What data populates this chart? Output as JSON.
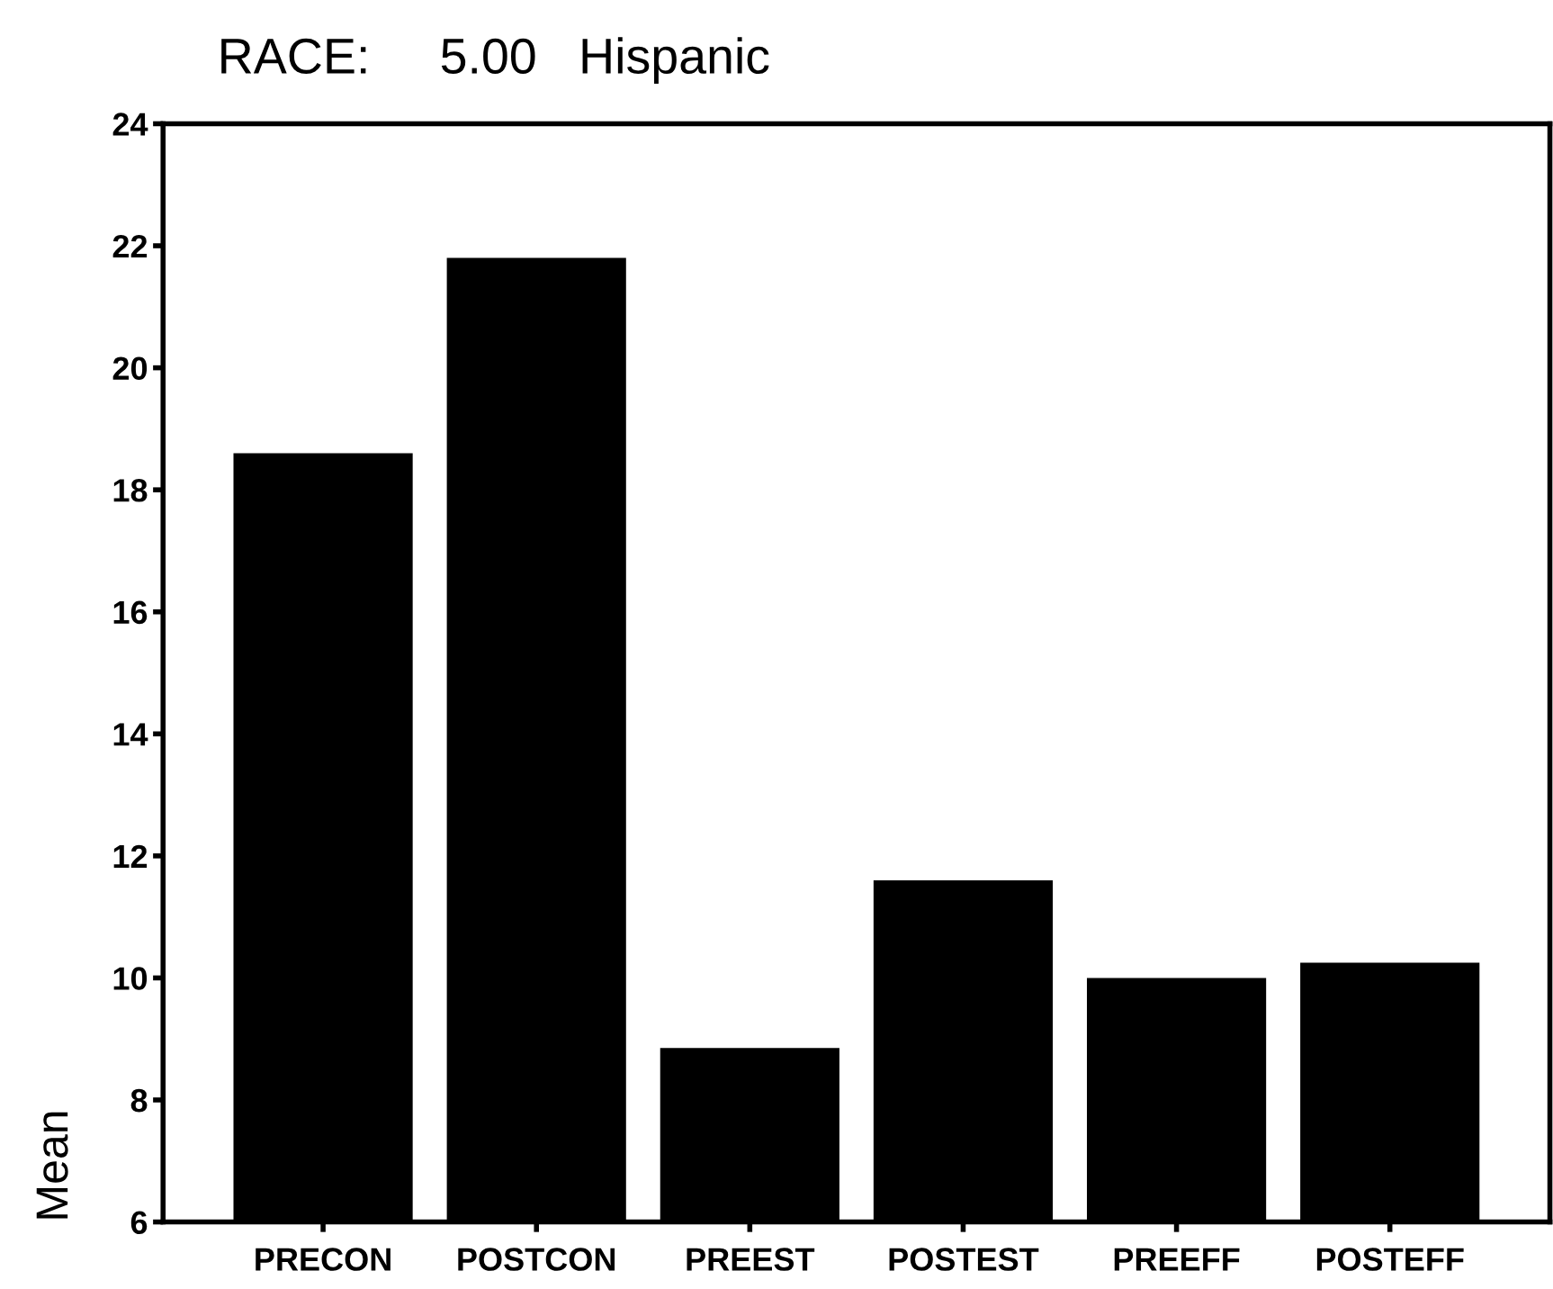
{
  "chart_data": {
    "type": "bar",
    "title": "RACE:     5.00   Hispanic",
    "ylabel": "Mean",
    "categories": [
      "PRECON",
      "POSTCON",
      "PREEST",
      "POSTEST",
      "PREEFF",
      "POSTEFF"
    ],
    "values": [
      18.6,
      21.8,
      8.85,
      11.6,
      10.0,
      10.25
    ],
    "color": "#000000",
    "ylim": [
      6,
      24
    ],
    "yticks": [
      6,
      8,
      10,
      12,
      14,
      16,
      18,
      20,
      22,
      24
    ],
    "grid": false
  }
}
